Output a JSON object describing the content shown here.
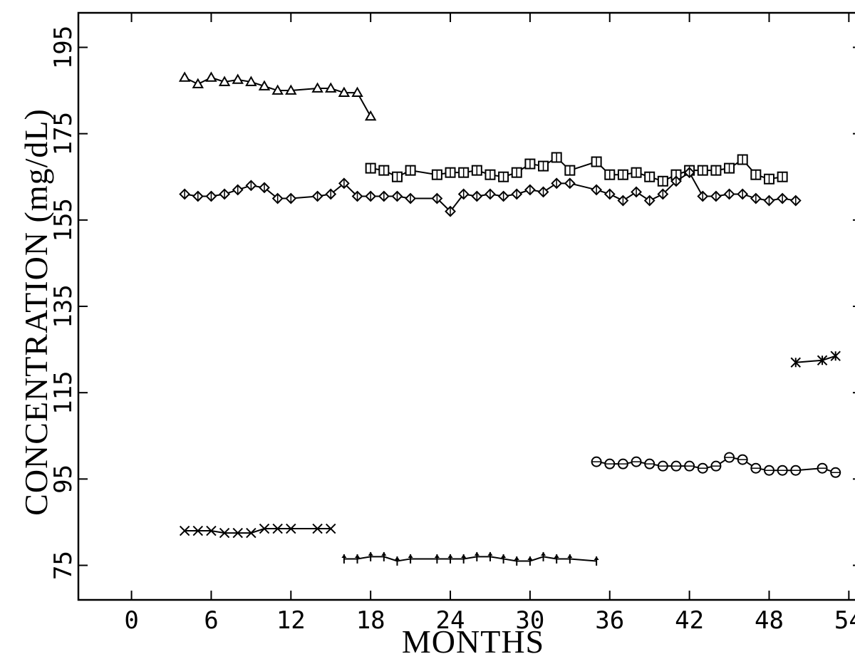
{
  "chart_data": {
    "type": "line",
    "title": "",
    "xlabel": "MONTHS",
    "ylabel": "CONCENTRATION (mg/dL)",
    "xlim": [
      -4,
      55
    ],
    "ylim": [
      67,
      203
    ],
    "xticks": [
      0,
      6,
      12,
      18,
      24,
      30,
      36,
      42,
      48,
      54
    ],
    "yticks": [
      75,
      95,
      115,
      135,
      155,
      175,
      195
    ],
    "grid": false,
    "series": [
      {
        "marker": "triangle",
        "x": [
          4,
          5,
          6,
          7,
          8,
          9,
          10,
          11,
          12,
          14,
          15,
          16,
          17,
          18
        ],
        "y": [
          188,
          186.5,
          188,
          187,
          187.5,
          187,
          186,
          185,
          185,
          185.5,
          185.5,
          184.5,
          184.5,
          179
        ]
      },
      {
        "marker": "square",
        "x": [
          18,
          19,
          20,
          21,
          23,
          24,
          25,
          26,
          27,
          28,
          29,
          30,
          31,
          32,
          33,
          35,
          36,
          37,
          38,
          39,
          40,
          41,
          42,
          43,
          44,
          45,
          46,
          47,
          48,
          49
        ],
        "y": [
          167,
          166.5,
          165,
          166.5,
          165.5,
          166,
          166,
          166.5,
          165.5,
          165,
          166,
          168,
          167.5,
          169.5,
          166.5,
          168.5,
          165.5,
          165.5,
          166,
          165,
          164,
          165.5,
          166.5,
          166.5,
          166.5,
          167,
          169,
          165.5,
          164.5,
          165
        ]
      },
      {
        "marker": "diamond",
        "x": [
          4,
          5,
          6,
          7,
          8,
          9,
          10,
          11,
          12,
          14,
          15,
          16,
          17,
          18,
          19,
          20,
          21,
          23,
          24,
          25,
          26,
          27,
          28,
          29,
          30,
          31,
          32,
          33,
          35,
          36,
          37,
          38,
          39,
          40,
          41,
          42,
          43,
          44,
          45,
          46,
          47,
          48,
          49,
          50
        ],
        "y": [
          161,
          160.5,
          160.5,
          161,
          162,
          163,
          162.5,
          160,
          160,
          160.5,
          161,
          163.5,
          160.5,
          160.5,
          160.5,
          160.5,
          160,
          160,
          157,
          161,
          160.5,
          161,
          160.5,
          161,
          162,
          161.5,
          163.5,
          163.5,
          162,
          161,
          159.5,
          161.5,
          159.5,
          161,
          164,
          166,
          160.5,
          160.5,
          161,
          161,
          160,
          159.5,
          160,
          159.5
        ]
      },
      {
        "marker": "x",
        "x": [
          4,
          5,
          6,
          7,
          8,
          9,
          10,
          11,
          12,
          14,
          15
        ],
        "y": [
          83,
          83,
          83,
          82.5,
          82.5,
          82.5,
          83.5,
          83.5,
          83.5,
          83.5,
          83.5
        ]
      },
      {
        "marker": "plus",
        "x": [
          16,
          17,
          18,
          19,
          20,
          21,
          23,
          24,
          25,
          26,
          27,
          28,
          29,
          30,
          31,
          32,
          33,
          35
        ],
        "y": [
          76.5,
          76.5,
          77,
          77,
          76,
          76.5,
          76.5,
          76.5,
          76.5,
          77,
          77,
          76.5,
          76,
          76,
          77,
          76.5,
          76.5,
          76
        ]
      },
      {
        "marker": "circle",
        "x": [
          35,
          36,
          37,
          38,
          39,
          40,
          41,
          42,
          43,
          44,
          45,
          46,
          47,
          48,
          49,
          50,
          52,
          53
        ],
        "y": [
          99,
          98.5,
          98.5,
          99,
          98.5,
          98,
          98,
          98,
          97.5,
          98,
          100,
          99.5,
          97.5,
          97,
          97,
          97,
          97.5,
          96.5
        ]
      },
      {
        "marker": "star",
        "x": [
          50,
          52,
          53
        ],
        "y": [
          122,
          122.5,
          123.5
        ]
      }
    ]
  }
}
